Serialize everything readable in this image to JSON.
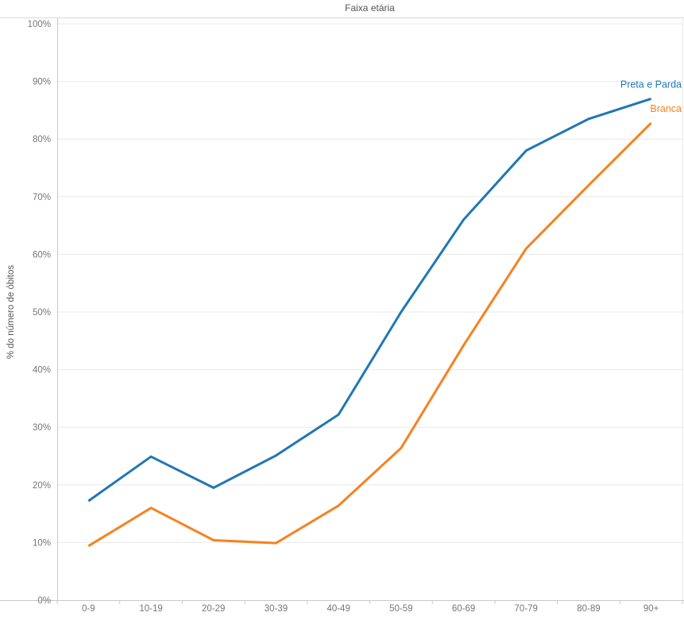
{
  "chart_data": {
    "type": "line",
    "title": "Faixa etária",
    "ylabel": "% do número de óbitos",
    "xlabel": "",
    "categories": [
      "0-9",
      "10-19",
      "20-29",
      "30-39",
      "40-49",
      "50-59",
      "60-69",
      "70-79",
      "80-89",
      "90+"
    ],
    "series": [
      {
        "name": "Preta e Parda",
        "color": "#1f77b4",
        "values": [
          17.2,
          24.9,
          19.5,
          25.1,
          32.2,
          50.0,
          66.0,
          78.0,
          83.5,
          87.0
        ]
      },
      {
        "name": "Branca",
        "color": "#f8811f",
        "values": [
          9.4,
          16.0,
          10.4,
          9.9,
          16.4,
          26.4,
          44.2,
          61.0,
          72.0,
          82.8
        ]
      }
    ],
    "ylim": [
      0,
      100
    ],
    "yticks": [
      0,
      10,
      20,
      30,
      40,
      50,
      60,
      70,
      80,
      90,
      100
    ],
    "ytick_labels": [
      "0%",
      "10%",
      "20%",
      "30%",
      "40%",
      "50%",
      "60%",
      "70%",
      "80%",
      "90%",
      "100%"
    ],
    "grid": "horizontal",
    "legend_position": "labels-at-line-ends"
  },
  "style": {
    "accent_blue": "#1f77b4",
    "accent_orange": "#f8811f",
    "grid_color": "#e9e9e9",
    "axis_color": "#c9c9c9",
    "frame_color": "#d9d9d9",
    "tick_label_color": "#767676",
    "title_color": "#555555"
  }
}
